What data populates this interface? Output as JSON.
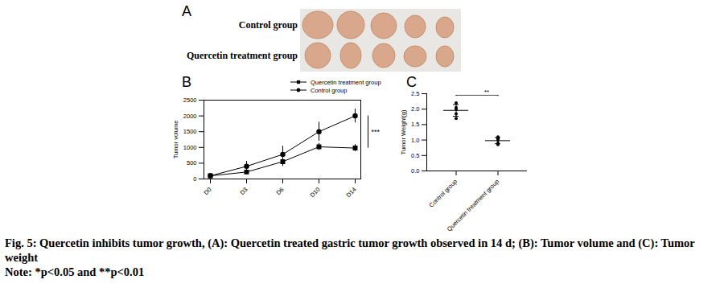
{
  "panel_a": {
    "label": "A",
    "rows": [
      "Control group",
      "Quercetin treatment group"
    ]
  },
  "chart_data": [
    {
      "panel": "B",
      "type": "line",
      "categories": [
        "D0",
        "D3",
        "D6",
        "D10",
        "D14"
      ],
      "y_label": "Tumor volume",
      "ylim": [
        0,
        2500
      ],
      "yticks": [
        0,
        500,
        1000,
        1500,
        2000,
        2500
      ],
      "legend": "top",
      "series": [
        {
          "name": "Quercetin treatment group",
          "color": "#000000",
          "marker": "square",
          "values": [
            100,
            220,
            550,
            1020,
            980
          ],
          "errors": [
            20,
            60,
            150,
            110,
            110
          ]
        },
        {
          "name": "Control group",
          "color": "#000000",
          "marker": "circle",
          "values": [
            100,
            400,
            780,
            1500,
            2000
          ],
          "errors": [
            20,
            160,
            260,
            300,
            220
          ]
        }
      ],
      "annotations": [
        {
          "text": "***",
          "between": [
            "Control group",
            "Quercetin treatment group"
          ],
          "at": "D14"
        }
      ]
    },
    {
      "panel": "C",
      "type": "scatter",
      "categories": [
        "Control group",
        "Quercetin treatment group"
      ],
      "y_label": "Tumor Weight(g)",
      "ylim": [
        0,
        2.5
      ],
      "yticks": [
        {
          "value": 0,
          "label": "0.0"
        },
        {
          "value": 0.5,
          "label": "0.5"
        },
        {
          "value": 1,
          "label": "1.0"
        },
        {
          "value": 1.5,
          "label": "1.5"
        },
        {
          "value": 2,
          "label": "2.0"
        },
        {
          "value": 2.5,
          "label": "2.5"
        }
      ],
      "color": "#000000",
      "marker": "circle",
      "points": [
        [
          2.2,
          2.05,
          2.0,
          1.85,
          1.7
        ],
        [
          1.1,
          1.05,
          1.0,
          0.9,
          0.85
        ]
      ],
      "mean": [
        1.96,
        0.98
      ],
      "sd": [
        0.19,
        0.1
      ],
      "annotations": [
        {
          "text": "**",
          "between": [
            "Control group",
            "Quercetin treatment group"
          ]
        }
      ]
    }
  ],
  "caption": {
    "title": "Fig. 5: Quercetin inhibits tumor growth, (A): Quercetin treated gastric tumor growth observed in 14 d; (B): Tumor volume and (C): Tumor weight",
    "note": "Note: *p<0.05 and **p<0.01"
  }
}
